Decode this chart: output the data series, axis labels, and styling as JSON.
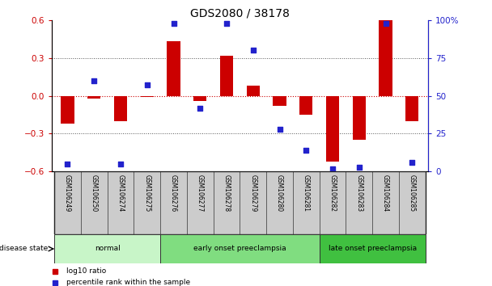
{
  "title": "GDS2080 / 38178",
  "samples": [
    "GSM106249",
    "GSM106250",
    "GSM106274",
    "GSM106275",
    "GSM106276",
    "GSM106277",
    "GSM106278",
    "GSM106279",
    "GSM106280",
    "GSM106281",
    "GSM106282",
    "GSM106283",
    "GSM106284",
    "GSM106285"
  ],
  "log10_ratio": [
    -0.22,
    -0.02,
    -0.2,
    -0.01,
    0.43,
    -0.04,
    0.32,
    0.08,
    -0.08,
    -0.15,
    -0.52,
    -0.35,
    0.6,
    -0.2
  ],
  "percentile_rank": [
    5,
    60,
    5,
    57,
    98,
    42,
    98,
    80,
    28,
    14,
    2,
    3,
    98,
    6
  ],
  "groups": [
    {
      "label": "normal",
      "start": 0,
      "end": 4,
      "color": "#c8f5c8"
    },
    {
      "label": "early onset preeclampsia",
      "start": 4,
      "end": 10,
      "color": "#80dd80"
    },
    {
      "label": "late onset preeclampsia",
      "start": 10,
      "end": 14,
      "color": "#40c040"
    }
  ],
  "ylim_left": [
    -0.6,
    0.6
  ],
  "ylim_right": [
    0,
    100
  ],
  "bar_color": "#cc0000",
  "dot_color": "#2222cc",
  "bar_width": 0.5,
  "dot_size": 25,
  "grid_color": "#555555",
  "zero_line_color": "#cc0000",
  "background_color": "#ffffff",
  "title_fontsize": 10,
  "left_yticks": [
    -0.6,
    -0.3,
    0.0,
    0.3,
    0.6
  ],
  "right_yticks": [
    0,
    25,
    50,
    75,
    100
  ],
  "legend_label_log10": "log10 ratio",
  "legend_label_pct": "percentile rank within the sample",
  "disease_state_label": "disease state"
}
